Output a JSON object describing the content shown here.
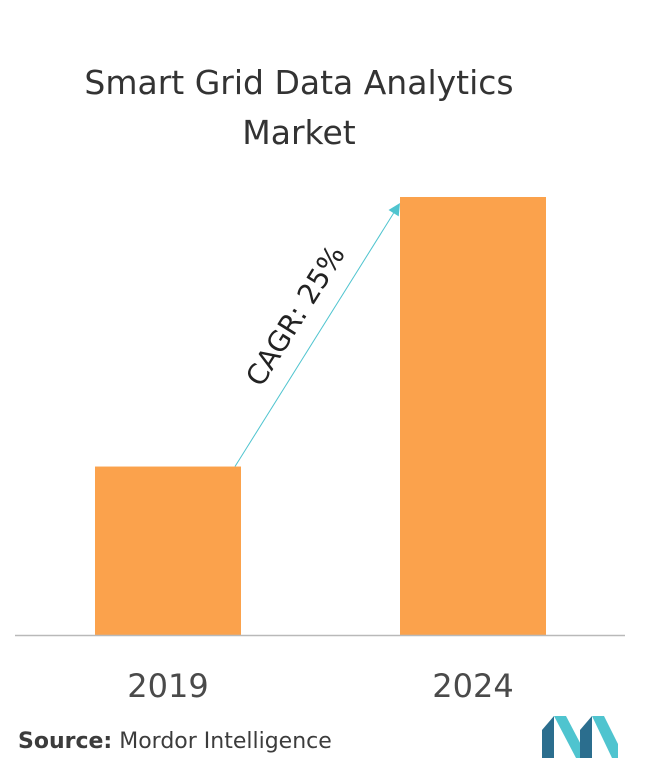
{
  "chart_data": {
    "type": "bar",
    "title_lines": [
      "Smart Grid Data Analytics",
      "Market"
    ],
    "categories": [
      "2019",
      "2024"
    ],
    "values": [
      1,
      2.6
    ],
    "annotation": "CAGR:  25%",
    "xlabel": "",
    "ylabel": "",
    "grid": false
  },
  "colors": {
    "bar": "#FBA24C",
    "arrow": "#4FC4CF",
    "axis": "#B9B9B9",
    "logo_dark": "#2B6E8E",
    "logo_light": "#4FC4CF"
  },
  "source": {
    "label": "Source:",
    "text": " Mordor Intelligence"
  },
  "logo": {
    "icon": "mordor-intelligence-logo-icon"
  }
}
